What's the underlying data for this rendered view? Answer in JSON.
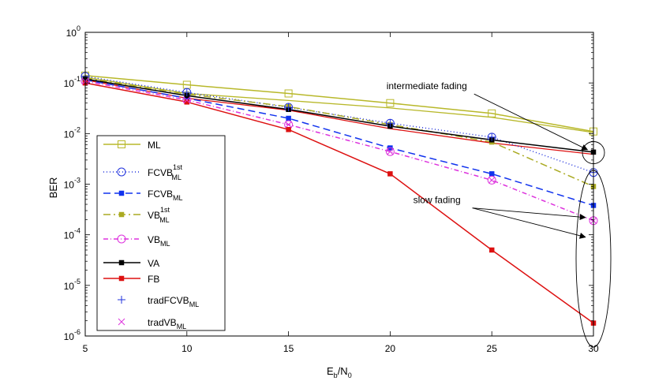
{
  "chart_data": {
    "type": "line",
    "yscale": "log",
    "xlabel": {
      "main": "E",
      "sub1": "b",
      "mid": "/N",
      "sub2": "0"
    },
    "ylabel": "BER",
    "xlim": [
      5,
      30
    ],
    "ylim": [
      1e-06,
      1
    ],
    "xticks": [
      5,
      10,
      15,
      20,
      25,
      30
    ],
    "ytick_labels": [
      {
        "base": "10",
        "exp": "0",
        "value": 1
      },
      {
        "base": "10",
        "exp": "-1",
        "value": 0.1
      },
      {
        "base": "10",
        "exp": "-2",
        "value": 0.01
      },
      {
        "base": "10",
        "exp": "-3",
        "value": 0.001
      },
      {
        "base": "10",
        "exp": "-4",
        "value": 0.0001
      },
      {
        "base": "10",
        "exp": "-5",
        "value": 1e-05
      },
      {
        "base": "10",
        "exp": "-6",
        "value": 1e-06
      }
    ],
    "series": [
      {
        "id": "ml",
        "label": {
          "main": "ML",
          "sub": "",
          "sup": ""
        },
        "color": "#b8b82a",
        "dash": "",
        "marker": "square-open",
        "x": [
          5,
          10,
          15,
          20,
          25,
          30
        ],
        "y": [
          0.14,
          0.092,
          0.062,
          0.04,
          0.025,
          0.011
        ]
      },
      {
        "id": "fcvb1",
        "label": {
          "main": "FCVB",
          "sub": "ML",
          "sup": "1st"
        },
        "color": "#2233dd",
        "dash": "1 3",
        "marker": "circle-open",
        "x": [
          5,
          10,
          15,
          20,
          25,
          30
        ],
        "y": [
          0.135,
          0.065,
          0.033,
          0.016,
          0.0085,
          0.0017
        ]
      },
      {
        "id": "fcvb",
        "label": {
          "main": "FCVB",
          "sub": "ML",
          "sup": ""
        },
        "color": "#1133ee",
        "dash": "9 5",
        "marker": "square-filled",
        "x": [
          5,
          10,
          15,
          20,
          25,
          30
        ],
        "y": [
          0.115,
          0.05,
          0.02,
          0.0052,
          0.0016,
          0.00038
        ]
      },
      {
        "id": "vb1",
        "label": {
          "main": "VB",
          "sub": "ML",
          "sup": "1st"
        },
        "color": "#aaaa22",
        "dash": "9 4 2 4",
        "marker": "square-filled",
        "x": [
          5,
          10,
          15,
          20,
          25,
          30
        ],
        "y": [
          0.125,
          0.06,
          0.034,
          0.015,
          0.0068,
          0.0009
        ]
      },
      {
        "id": "vb",
        "label": {
          "main": "VB",
          "sub": "ML",
          "sup": ""
        },
        "color": "#dd33dd",
        "dash": "6 3 1 3",
        "marker": "circle-open",
        "x": [
          5,
          10,
          15,
          20,
          25,
          30
        ],
        "y": [
          0.108,
          0.046,
          0.015,
          0.0044,
          0.0012,
          0.00019
        ]
      },
      {
        "id": "va",
        "label": {
          "main": "VA",
          "sub": "",
          "sup": ""
        },
        "color": "#000000",
        "dash": "",
        "marker": "square-filled",
        "x": [
          5,
          10,
          15,
          20,
          25,
          30
        ],
        "y": [
          0.12,
          0.056,
          0.03,
          0.014,
          0.0075,
          0.0043
        ]
      },
      {
        "id": "fb",
        "label": {
          "main": "FB",
          "sub": "",
          "sup": ""
        },
        "color": "#dd1111",
        "dash": "",
        "marker": "square-filled",
        "x": [
          5,
          10,
          15,
          20,
          25,
          30
        ],
        "y": [
          0.1,
          0.042,
          0.012,
          0.0016,
          5e-05,
          1.8e-06
        ]
      },
      {
        "id": "tradfcvb",
        "label": {
          "main": "tradFCVB",
          "sub": "ML",
          "sup": ""
        },
        "color": "#2233dd",
        "dash": "none",
        "marker": "plus",
        "x": [],
        "y": []
      },
      {
        "id": "tradvb",
        "label": {
          "main": "tradVB",
          "sub": "ML",
          "sup": ""
        },
        "color": "#dd33dd",
        "dash": "none",
        "marker": "x",
        "x": [],
        "y": []
      }
    ],
    "extra_lines": [
      {
        "color": "#b8b82a",
        "dash": "",
        "x": [
          5,
          10,
          15,
          20,
          25,
          30
        ],
        "y": [
          0.13,
          0.062,
          0.045,
          0.032,
          0.021,
          0.0105
        ]
      },
      {
        "color": "#dd1111",
        "dash": "",
        "x": [
          5,
          10,
          15,
          20,
          25,
          30
        ],
        "y": [
          0.115,
          0.05,
          0.029,
          0.0125,
          0.0065,
          0.0039
        ]
      }
    ],
    "annotations": [
      {
        "id": "intermediate",
        "text": "intermediate fading",
        "x": 21.8,
        "y": 0.075,
        "arrows": [
          [
            29.7,
            0.0048
          ]
        ]
      },
      {
        "id": "slow",
        "text": "slow fading",
        "x": 22.3,
        "y": 0.00042,
        "arrows": [
          [
            29.6,
            9e-05
          ],
          [
            29.6,
            0.00022
          ]
        ]
      }
    ],
    "legend_position": "left-lower"
  }
}
